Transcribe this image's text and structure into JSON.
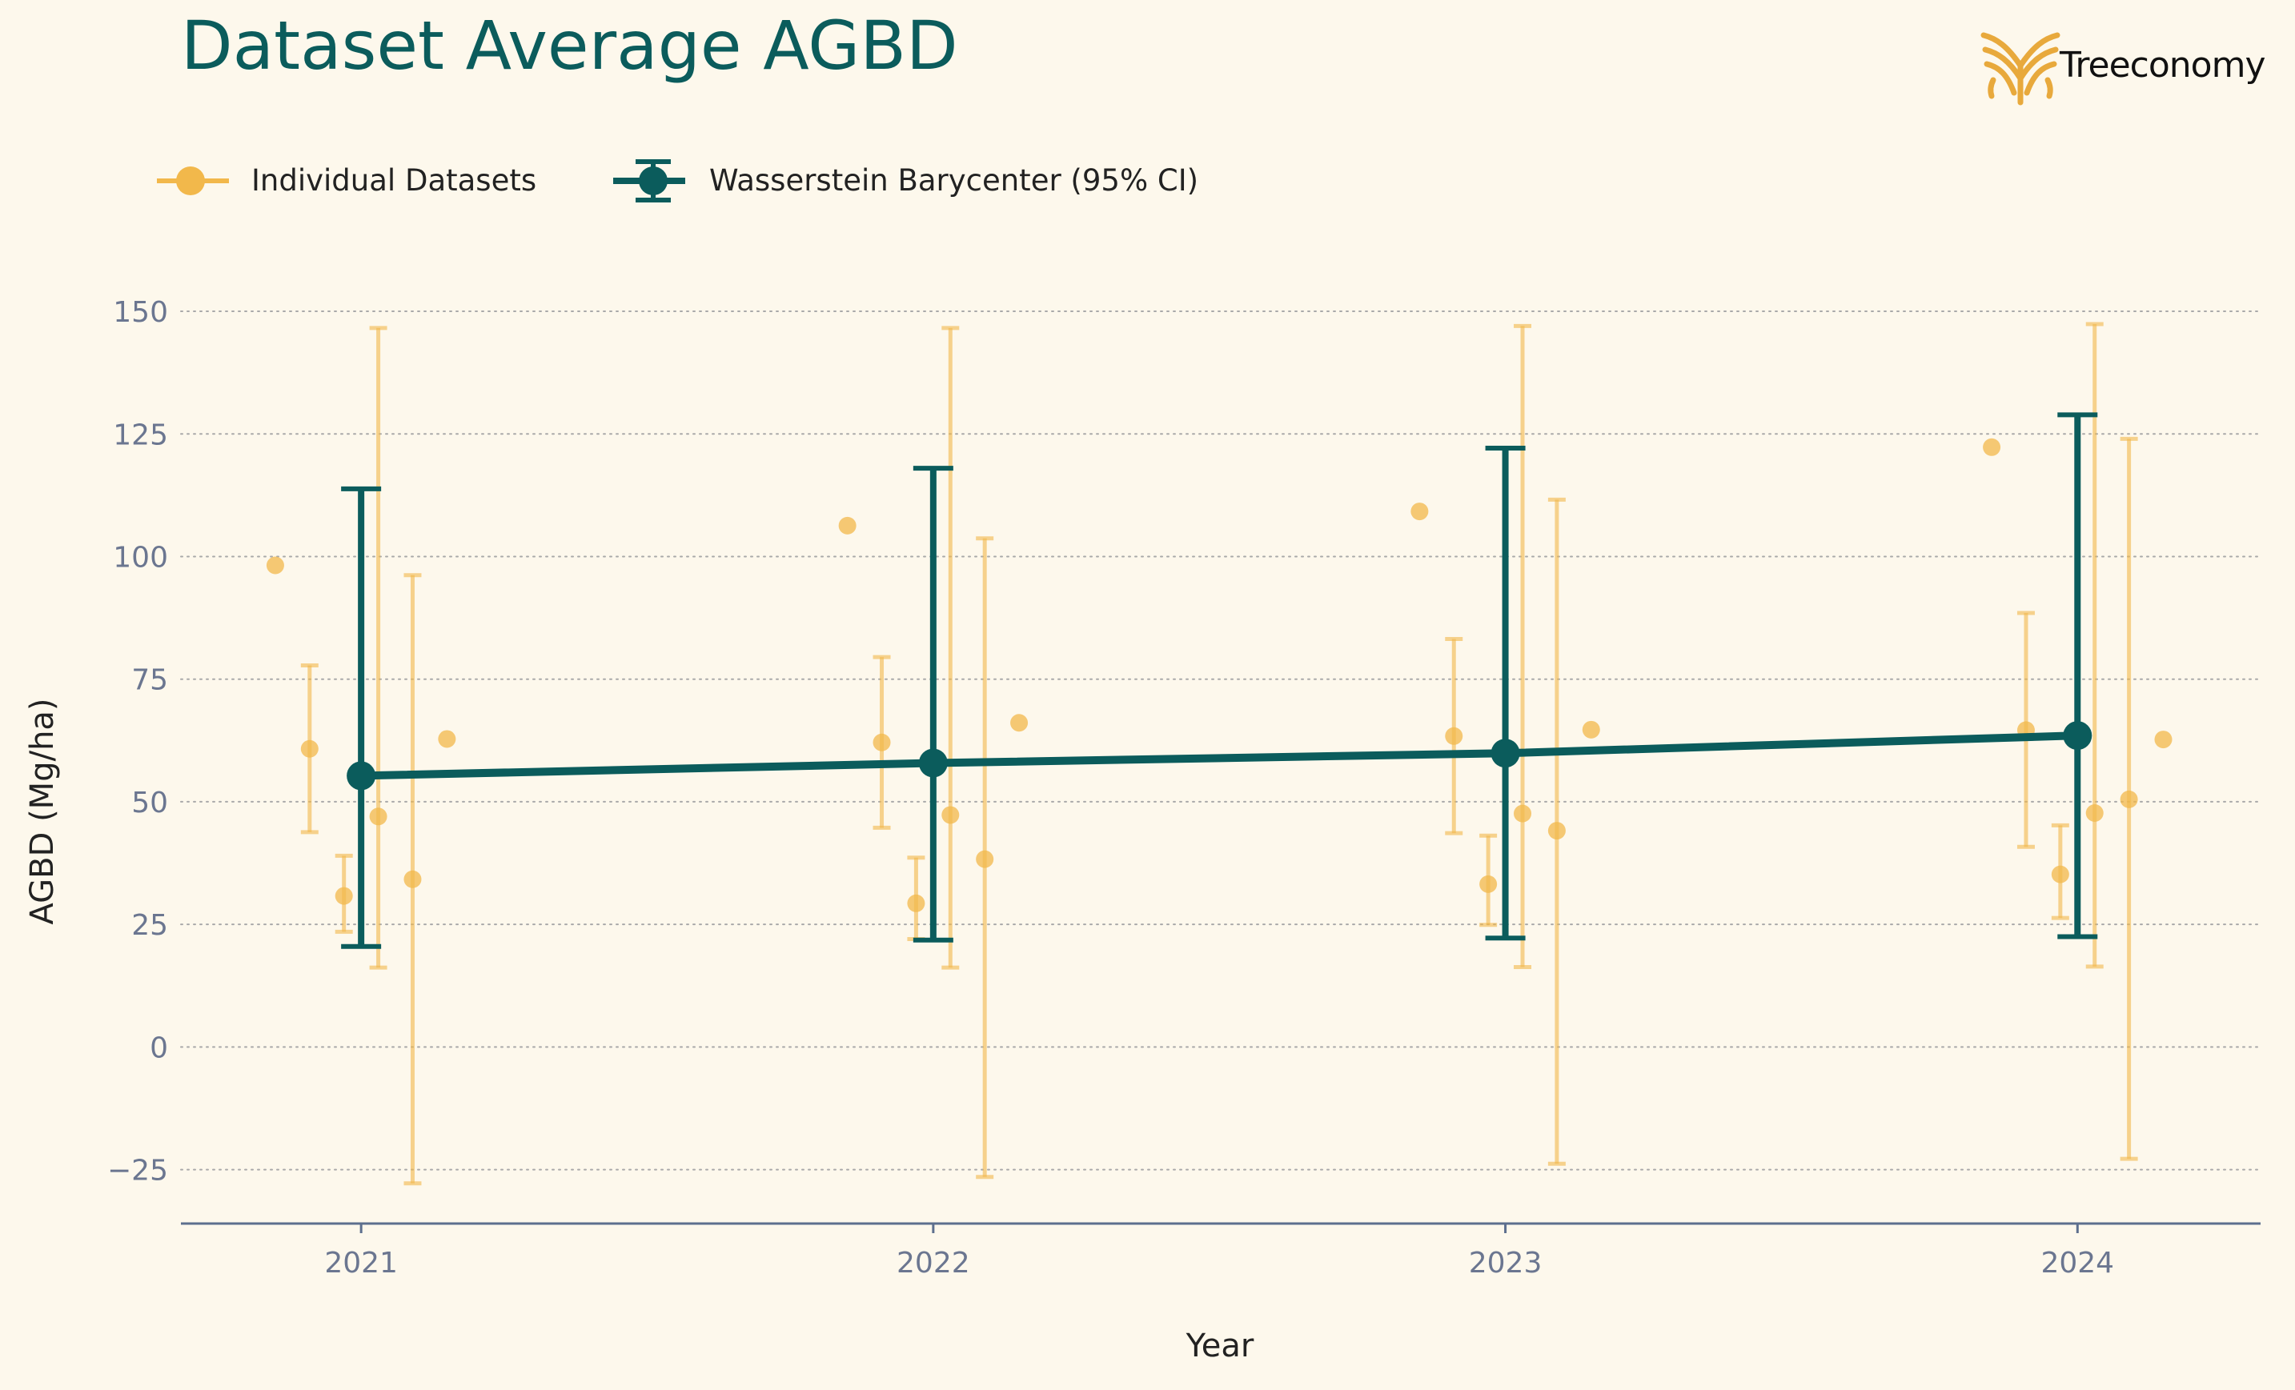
{
  "colors": {
    "background": "#fdf8ec",
    "title": "#0b5c5c",
    "individual": "#f2b84b",
    "barycenter": "#0b5c5c",
    "grid": "#a9a9a9",
    "axis": "#5d6f8e",
    "tick_text": "#6b7690",
    "label_text": "#222222",
    "logo": "#e8a93c"
  },
  "logo": {
    "text": "Treeconomy"
  },
  "chart_data": {
    "type": "scatter",
    "title": "Dataset Average AGBD",
    "xlabel": "Year",
    "ylabel": "AGBD (Mg/ha)",
    "ylim": [
      -36,
      158
    ],
    "xlim": [
      2020.685,
      2024.32
    ],
    "yticks": [
      -25,
      0,
      25,
      50,
      75,
      100,
      125,
      150
    ],
    "ytick_labels": [
      "−25",
      "0",
      "25",
      "50",
      "75",
      "100",
      "125",
      "150"
    ],
    "xticks": [
      2021,
      2022,
      2023,
      2024
    ],
    "xtick_labels": [
      "2021",
      "2022",
      "2023",
      "2024"
    ],
    "grid": "horizontal dotted",
    "legend_position": "top-left",
    "legend": [
      {
        "key": "individual",
        "label": "Individual Datasets"
      },
      {
        "key": "barycenter",
        "label": "Wasserstein Barycenter (95% CI)"
      }
    ],
    "series": [
      {
        "key": "individual",
        "name": "Individual Datasets",
        "points": [
          {
            "x": 2020.85,
            "y": 98.2,
            "low": null,
            "high": null
          },
          {
            "x": 2020.91,
            "y": 60.8,
            "low": 43.8,
            "high": 77.8
          },
          {
            "x": 2020.97,
            "y": 30.8,
            "low": 23.5,
            "high": 39.0
          },
          {
            "x": 2021.03,
            "y": 47.0,
            "low": 16.2,
            "high": 146.6
          },
          {
            "x": 2021.09,
            "y": 34.2,
            "low": -27.8,
            "high": 96.2
          },
          {
            "x": 2021.15,
            "y": 62.8,
            "low": null,
            "high": null
          },
          {
            "x": 2021.85,
            "y": 106.3,
            "low": null,
            "high": null
          },
          {
            "x": 2021.91,
            "y": 62.1,
            "low": 44.7,
            "high": 79.5
          },
          {
            "x": 2021.97,
            "y": 29.3,
            "low": 22.0,
            "high": 38.6
          },
          {
            "x": 2022.03,
            "y": 47.3,
            "low": 16.2,
            "high": 146.6
          },
          {
            "x": 2022.09,
            "y": 38.3,
            "low": -26.5,
            "high": 103.7
          },
          {
            "x": 2022.15,
            "y": 66.1,
            "low": null,
            "high": null
          },
          {
            "x": 2022.85,
            "y": 109.2,
            "low": null,
            "high": null
          },
          {
            "x": 2022.91,
            "y": 63.4,
            "low": 43.6,
            "high": 83.2
          },
          {
            "x": 2022.97,
            "y": 33.2,
            "low": 24.9,
            "high": 43.1
          },
          {
            "x": 2023.03,
            "y": 47.6,
            "low": 16.3,
            "high": 147.0
          },
          {
            "x": 2023.09,
            "y": 44.1,
            "low": -23.8,
            "high": 111.6
          },
          {
            "x": 2023.15,
            "y": 64.7,
            "low": null,
            "high": null
          },
          {
            "x": 2023.85,
            "y": 122.3,
            "low": null,
            "high": null
          },
          {
            "x": 2023.91,
            "y": 64.6,
            "low": 40.8,
            "high": 88.5
          },
          {
            "x": 2023.97,
            "y": 35.2,
            "low": 26.3,
            "high": 45.2
          },
          {
            "x": 2024.03,
            "y": 47.7,
            "low": 16.4,
            "high": 147.4
          },
          {
            "x": 2024.09,
            "y": 50.5,
            "low": -22.8,
            "high": 124.0
          },
          {
            "x": 2024.15,
            "y": 62.7,
            "low": null,
            "high": null
          }
        ]
      },
      {
        "key": "barycenter",
        "name": "Wasserstein Barycenter (95% CI)",
        "points": [
          {
            "x": 2021,
            "y": 55.3,
            "low": 20.5,
            "high": 113.8
          },
          {
            "x": 2022,
            "y": 57.9,
            "low": 21.8,
            "high": 118.0
          },
          {
            "x": 2023,
            "y": 59.9,
            "low": 22.2,
            "high": 122.1
          },
          {
            "x": 2024,
            "y": 63.5,
            "low": 22.5,
            "high": 128.9
          }
        ]
      }
    ]
  }
}
